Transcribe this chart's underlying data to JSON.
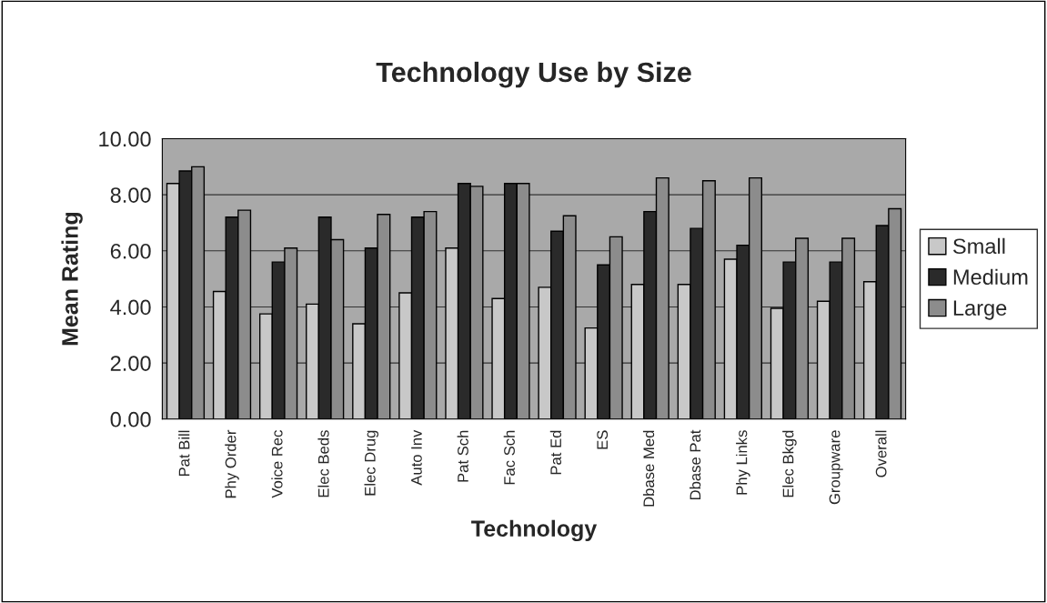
{
  "chart_data": {
    "type": "bar",
    "title": "Technology Use by Size",
    "xlabel": "Technology",
    "ylabel": "Mean Rating",
    "categories": [
      "Pat Bill",
      "Phy Order",
      "Voice Rec",
      "Elec Beds",
      "Elec Drug",
      "Auto Inv",
      "Pat Sch",
      "Fac Sch",
      "Pat Ed",
      "ES",
      "Dbase Med",
      "Dbase Pat",
      "Phy Links",
      "Elec Bkgd",
      "Groupware",
      "Overall"
    ],
    "series": [
      {
        "name": "Small",
        "color": "#c8c8c8",
        "values": [
          8.4,
          4.55,
          3.75,
          4.1,
          3.4,
          4.5,
          6.1,
          4.3,
          4.7,
          3.25,
          4.8,
          4.8,
          5.7,
          3.95,
          4.2,
          4.9
        ]
      },
      {
        "name": "Medium",
        "color": "#2a2a2a",
        "values": [
          8.85,
          7.2,
          5.6,
          7.2,
          6.1,
          7.2,
          8.4,
          8.4,
          6.7,
          5.5,
          7.4,
          6.8,
          6.2,
          5.6,
          5.6,
          6.9
        ]
      },
      {
        "name": "Large",
        "color": "#8c8c8c",
        "values": [
          9.0,
          7.45,
          6.1,
          6.4,
          7.3,
          7.4,
          8.3,
          8.4,
          7.25,
          6.5,
          8.6,
          8.5,
          8.6,
          6.45,
          6.45,
          7.5
        ]
      }
    ],
    "ylim": [
      0,
      10
    ],
    "yticks": [
      {
        "value": 0,
        "label": "0.00"
      },
      {
        "value": 2,
        "label": "2.00"
      },
      {
        "value": 4,
        "label": "4.00"
      },
      {
        "value": 6,
        "label": "6.00"
      },
      {
        "value": 8,
        "label": "8.00"
      },
      {
        "value": 10,
        "label": "10.00"
      }
    ],
    "grid": "y",
    "legend": "right"
  }
}
